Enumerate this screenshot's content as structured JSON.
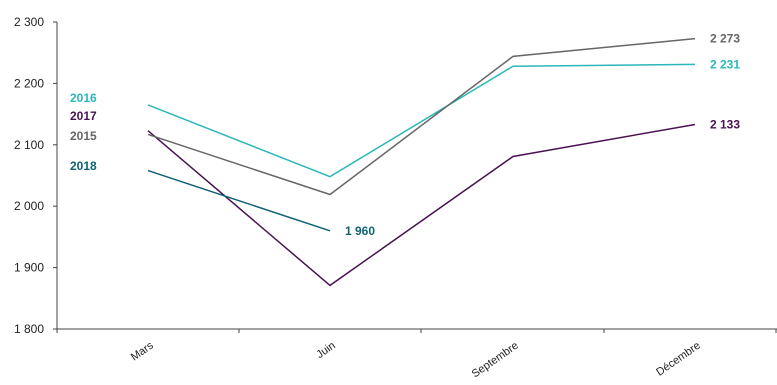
{
  "chart_data": {
    "type": "line",
    "title": "",
    "xlabel": "",
    "ylabel": "",
    "categories": [
      "Mars",
      "Juin",
      "Septembre",
      "Décembre"
    ],
    "ylim": [
      1800,
      2300
    ],
    "yticks": [
      1800,
      1900,
      2000,
      2100,
      2200,
      2300
    ],
    "ytick_labels": [
      "1 800",
      "1 900",
      "2 000",
      "2 100",
      "2 200",
      "2 300"
    ],
    "grid": false,
    "legend": "left, at start of lines",
    "series": [
      {
        "name": "2016",
        "color": "#2ab7b9",
        "values": [
          2165,
          2048,
          2228,
          2231
        ],
        "end_label": "2 231"
      },
      {
        "name": "2017",
        "color": "#4a1252",
        "values": [
          2123,
          1871,
          2081,
          2133
        ],
        "end_label": "2 133"
      },
      {
        "name": "2015",
        "color": "#666666",
        "values": [
          2117,
          2019,
          2244,
          2273
        ],
        "end_label": "2 273"
      },
      {
        "name": "2018",
        "color": "#0e6370",
        "values": [
          2058,
          1960,
          null,
          null
        ],
        "end_label": "1 960"
      }
    ]
  }
}
